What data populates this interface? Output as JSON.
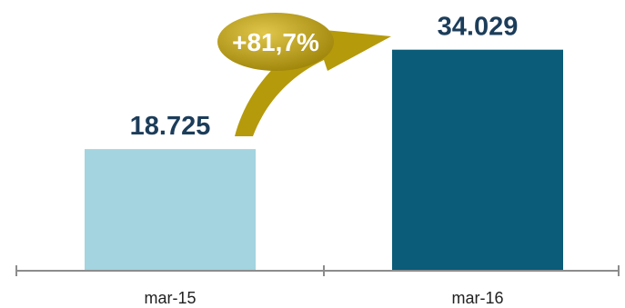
{
  "chart_data": {
    "type": "bar",
    "categories": [
      "mar-15",
      "mar-16"
    ],
    "values": [
      18725,
      34029
    ],
    "value_labels": [
      "18.725",
      "34.029"
    ],
    "ylim": [
      0,
      40000
    ],
    "grid": false,
    "annotation": {
      "text": "+81,7%",
      "from": "mar-15",
      "to": "mar-16"
    },
    "colors": {
      "bars": [
        "#a3d4e0",
        "#0a5c78"
      ],
      "annotation": "#b59a0c",
      "value_text": "#1c3d5a",
      "axis": "#8c8c8c"
    }
  }
}
